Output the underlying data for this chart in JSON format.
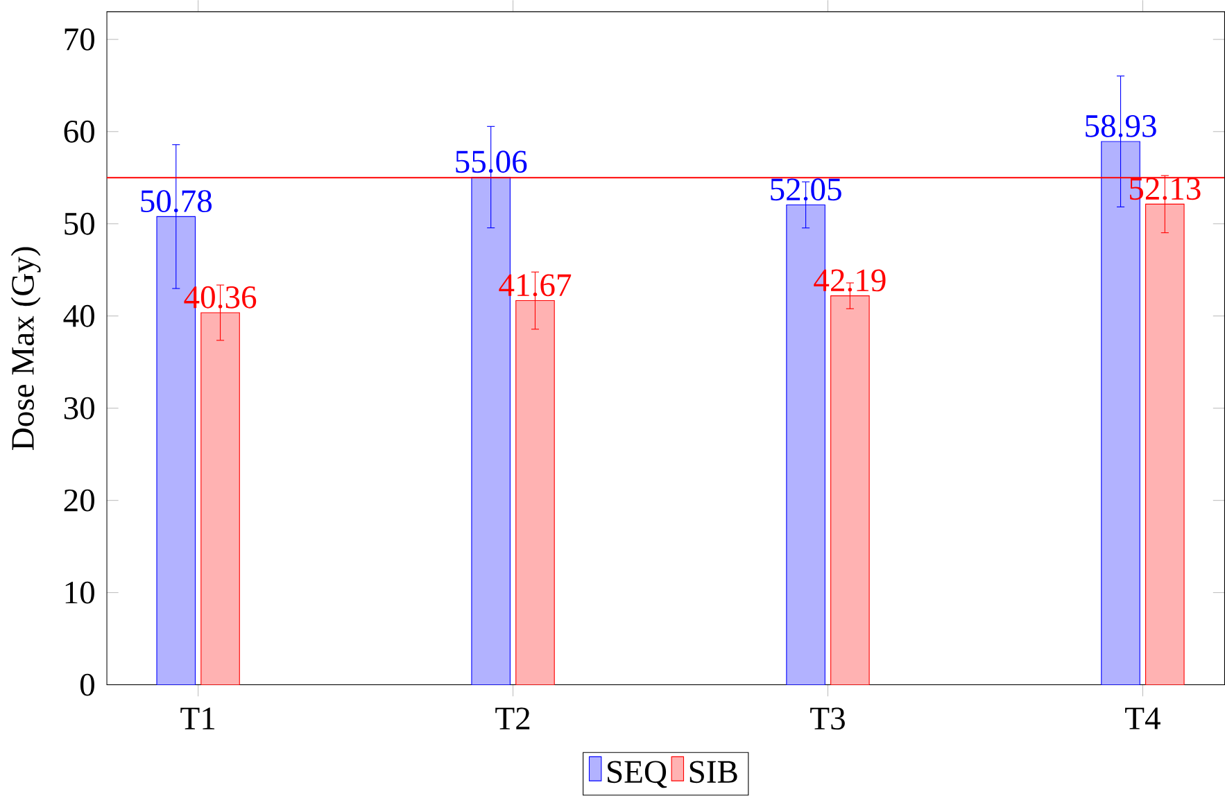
{
  "chart_data": {
    "type": "bar",
    "ylabel": "Dose Max (Gy)",
    "categories": [
      "T1",
      "T2",
      "T3",
      "T4"
    ],
    "series": [
      {
        "name": "SEQ",
        "color": "#b2b2ff",
        "values": [
          50.78,
          55.06,
          52.05,
          58.93
        ],
        "errors": [
          7.8,
          5.5,
          2.5,
          7.1
        ]
      },
      {
        "name": "SIB",
        "color": "#ffb2b2",
        "values": [
          40.36,
          41.67,
          42.19,
          52.13
        ],
        "errors": [
          3.0,
          3.1,
          1.4,
          3.1
        ]
      }
    ],
    "data_labels": true,
    "ylim": [
      0,
      73
    ],
    "yticks": [
      0,
      10,
      20,
      30,
      40,
      50,
      60,
      70
    ],
    "ref_lines": [
      {
        "axis": "y",
        "value": 55,
        "color": "#ff0000"
      }
    ],
    "legend": "bottom",
    "grid": false
  }
}
